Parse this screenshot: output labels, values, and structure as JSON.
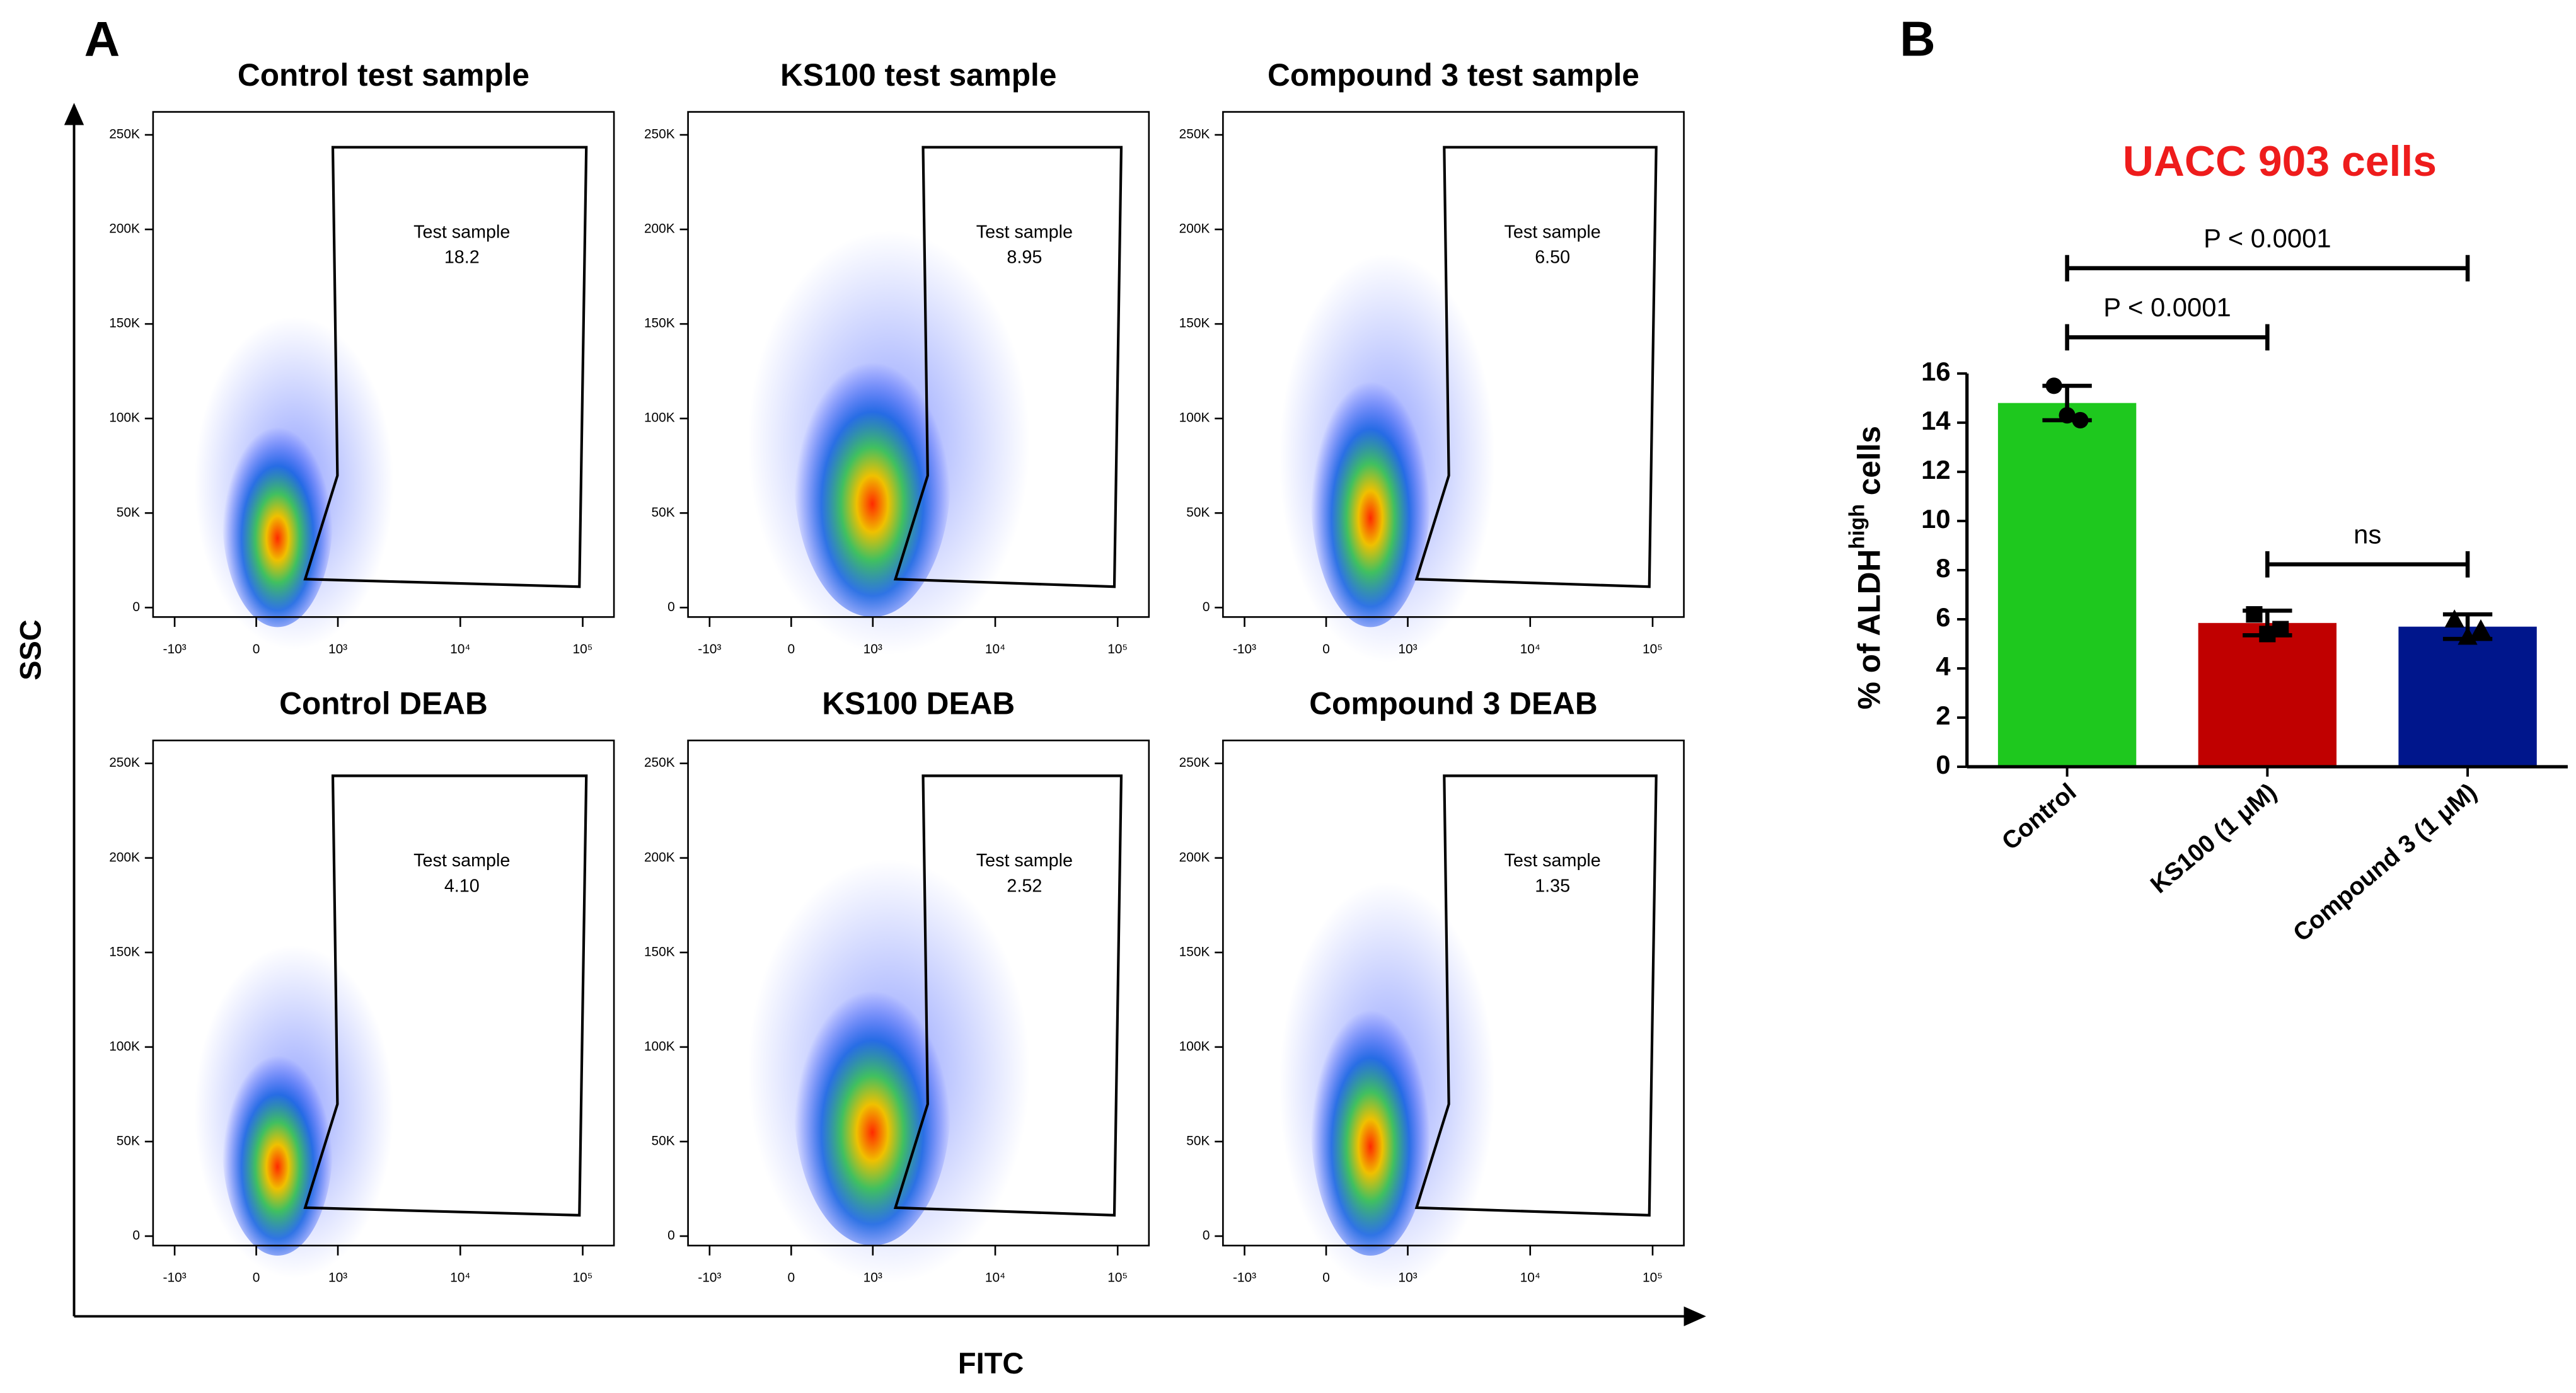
{
  "panel_labels": [
    "A",
    "B"
  ],
  "axis_labels": {
    "y": "SSC",
    "x": "FITC"
  },
  "chart_data": [
    {
      "type": "flow",
      "title": "Control test sample",
      "xlim": [
        -1500,
        180000
      ],
      "ylim": [
        -5000,
        262144
      ],
      "xticks": [
        {
          "value": -1000,
          "label": "-10³"
        },
        0,
        {
          "value": 1000,
          "label": "10³"
        },
        {
          "value": 10000,
          "label": "10⁴"
        },
        {
          "value": 100000,
          "label": "10⁵"
        }
      ],
      "yticks": [
        0,
        {
          "value": 50000,
          "label": "50K"
        },
        {
          "value": 100000,
          "label": "100K"
        },
        {
          "value": 150000,
          "label": "150K"
        },
        {
          "value": 200000,
          "label": "200K"
        },
        {
          "value": 250000,
          "label": "250K"
        }
      ],
      "gate": {
        "name": "Test sample",
        "value": 18.2,
        "value_label": "18.2"
      }
    },
    {
      "type": "flow",
      "title": "KS100 test sample",
      "xlim": [
        -1500,
        180000
      ],
      "ylim": [
        -5000,
        262144
      ],
      "xticks": [
        {
          "value": -1000,
          "label": "-10³"
        },
        0,
        {
          "value": 1000,
          "label": "10³"
        },
        {
          "value": 10000,
          "label": "10⁴"
        },
        {
          "value": 100000,
          "label": "10⁵"
        }
      ],
      "yticks": [
        0,
        {
          "value": 50000,
          "label": "50K"
        },
        {
          "value": 100000,
          "label": "100K"
        },
        {
          "value": 150000,
          "label": "150K"
        },
        {
          "value": 200000,
          "label": "200K"
        },
        {
          "value": 250000,
          "label": "250K"
        }
      ],
      "gate": {
        "name": "Test sample",
        "value": 8.95,
        "value_label": "8.95"
      }
    },
    {
      "type": "flow",
      "title": "Compound 3 test sample",
      "xlim": [
        -1500,
        180000
      ],
      "ylim": [
        -5000,
        262144
      ],
      "xticks": [
        {
          "value": -1000,
          "label": "-10³"
        },
        0,
        {
          "value": 1000,
          "label": "10³"
        },
        {
          "value": 10000,
          "label": "10⁴"
        },
        {
          "value": 100000,
          "label": "10⁵"
        }
      ],
      "yticks": [
        0,
        {
          "value": 50000,
          "label": "50K"
        },
        {
          "value": 100000,
          "label": "100K"
        },
        {
          "value": 150000,
          "label": "150K"
        },
        {
          "value": 200000,
          "label": "200K"
        },
        {
          "value": 250000,
          "label": "250K"
        }
      ],
      "gate": {
        "name": "Test sample",
        "value": 6.5,
        "value_label": "6.50"
      }
    },
    {
      "type": "flow",
      "title": "Control DEAB",
      "xlim": [
        -1500,
        180000
      ],
      "ylim": [
        -5000,
        262144
      ],
      "xticks": [
        {
          "value": -1000,
          "label": "-10³"
        },
        0,
        {
          "value": 1000,
          "label": "10³"
        },
        {
          "value": 10000,
          "label": "10⁴"
        },
        {
          "value": 100000,
          "label": "10⁵"
        }
      ],
      "yticks": [
        0,
        {
          "value": 50000,
          "label": "50K"
        },
        {
          "value": 100000,
          "label": "100K"
        },
        {
          "value": 150000,
          "label": "150K"
        },
        {
          "value": 200000,
          "label": "200K"
        },
        {
          "value": 250000,
          "label": "250K"
        }
      ],
      "gate": {
        "name": "Test sample",
        "value": 4.1,
        "value_label": "4.10"
      }
    },
    {
      "type": "flow",
      "title": "KS100 DEAB",
      "xlim": [
        -1500,
        180000
      ],
      "ylim": [
        -5000,
        262144
      ],
      "xticks": [
        {
          "value": -1000,
          "label": "-10³"
        },
        0,
        {
          "value": 1000,
          "label": "10³"
        },
        {
          "value": 10000,
          "label": "10⁴"
        },
        {
          "value": 100000,
          "label": "10⁵"
        }
      ],
      "yticks": [
        0,
        {
          "value": 50000,
          "label": "50K"
        },
        {
          "value": 100000,
          "label": "100K"
        },
        {
          "value": 150000,
          "label": "150K"
        },
        {
          "value": 200000,
          "label": "200K"
        },
        {
          "value": 250000,
          "label": "250K"
        }
      ],
      "gate": {
        "name": "Test sample",
        "value": 2.52,
        "value_label": "2.52"
      }
    },
    {
      "type": "flow",
      "title": "Compound 3 DEAB",
      "xlim": [
        -1500,
        180000
      ],
      "ylim": [
        -5000,
        262144
      ],
      "xticks": [
        {
          "value": -1000,
          "label": "-10³"
        },
        0,
        {
          "value": 1000,
          "label": "10³"
        },
        {
          "value": 10000,
          "label": "10⁴"
        },
        {
          "value": 100000,
          "label": "10⁵"
        }
      ],
      "yticks": [
        0,
        {
          "value": 50000,
          "label": "50K"
        },
        {
          "value": 100000,
          "label": "100K"
        },
        {
          "value": 150000,
          "label": "150K"
        },
        {
          "value": 200000,
          "label": "200K"
        },
        {
          "value": 250000,
          "label": "250K"
        }
      ],
      "gate": {
        "name": "Test sample",
        "value": 1.35,
        "value_label": "1.35"
      }
    },
    {
      "type": "bar",
      "title": "UACC 903 cells",
      "ylabel": {
        "text": "% of ALDH",
        "sup": "high",
        "suffix": " cells"
      },
      "categories": [
        "Control",
        "KS100 (1 μM)",
        "Compound 3 (1 μM)"
      ],
      "values": [
        14.8,
        5.85,
        5.7
      ],
      "errors": [
        0.7,
        0.5,
        0.5
      ],
      "points": [
        [
          15.5,
          14.3,
          14.1
        ],
        [
          6.2,
          5.4,
          5.6
        ],
        [
          6.0,
          5.3,
          5.6
        ]
      ],
      "colors": [
        "#1ec81e",
        "#c00000",
        "#00168c"
      ],
      "ylim": [
        0,
        16
      ],
      "yticks": [
        0,
        2,
        4,
        6,
        8,
        10,
        12,
        14,
        16
      ],
      "comparisons": [
        {
          "label": "P < 0.0001",
          "between": [
            0,
            2
          ]
        },
        {
          "label": "P < 0.0001",
          "between": [
            0,
            1
          ]
        },
        {
          "label": "ns",
          "between": [
            1,
            2
          ]
        }
      ]
    }
  ]
}
